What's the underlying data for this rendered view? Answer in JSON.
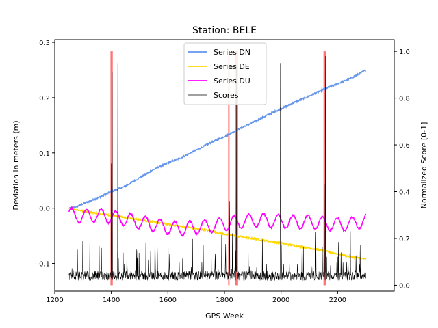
{
  "chart_data": {
    "type": "line",
    "title": "Station: BELE",
    "xlabel": "GPS Week",
    "ylabel": "Deviation in meters (m)",
    "y2label": "Normalized Score [0-1]",
    "xlim": [
      1200,
      2400
    ],
    "ylim": [
      -0.15,
      0.305
    ],
    "y2lim": [
      -0.025,
      1.05
    ],
    "xticks": [
      1200,
      1400,
      1600,
      1800,
      2000,
      2200
    ],
    "yticks": [
      -0.1,
      0.0,
      0.1,
      0.2,
      0.3
    ],
    "y2ticks": [
      0.0,
      0.2,
      0.4,
      0.6,
      0.8,
      1.0
    ],
    "x_range": [
      1250,
      2300
    ],
    "legend_position": "top-center",
    "series": [
      {
        "name": "Series DN",
        "axis": "left",
        "color": "#6495ED",
        "x": [
          1250,
          1275,
          1300,
          1350,
          1400,
          1450,
          1500,
          1550,
          1600,
          1650,
          1700,
          1750,
          1800,
          1850,
          1900,
          1950,
          2000,
          2050,
          2100,
          2150,
          2200,
          2250,
          2300
        ],
        "values": [
          0.0,
          0.002,
          0.008,
          0.018,
          0.03,
          0.04,
          0.055,
          0.07,
          0.082,
          0.092,
          0.105,
          0.118,
          0.13,
          0.143,
          0.155,
          0.168,
          0.18,
          0.192,
          0.203,
          0.215,
          0.225,
          0.236,
          0.25
        ]
      },
      {
        "name": "Series DE",
        "axis": "left",
        "color": "#FFD700",
        "x": [
          1250,
          1300,
          1350,
          1400,
          1450,
          1500,
          1550,
          1600,
          1650,
          1700,
          1750,
          1800,
          1850,
          1900,
          1950,
          2000,
          2050,
          2100,
          2150,
          2200,
          2250,
          2300
        ],
        "values": [
          0.0,
          -0.005,
          -0.009,
          -0.013,
          -0.017,
          -0.021,
          -0.025,
          -0.029,
          -0.033,
          -0.037,
          -0.041,
          -0.047,
          -0.051,
          -0.055,
          -0.059,
          -0.063,
          -0.068,
          -0.072,
          -0.077,
          -0.083,
          -0.088,
          -0.092
        ]
      },
      {
        "name": "Series DU",
        "axis": "left",
        "color": "#FF00FF",
        "seasonal": true,
        "x": [
          1250,
          1300,
          1350,
          1400,
          1450,
          1500,
          1550,
          1600,
          1650,
          1700,
          1750,
          1800,
          1850,
          1900,
          1950,
          2000,
          2050,
          2100,
          2150,
          2200,
          2250,
          2300
        ],
        "values": [
          -0.012,
          -0.015,
          -0.013,
          -0.015,
          -0.02,
          -0.025,
          -0.03,
          -0.035,
          -0.037,
          -0.035,
          -0.032,
          -0.028,
          -0.025,
          -0.022,
          -0.022,
          -0.024,
          -0.025,
          -0.025,
          -0.027,
          -0.03,
          -0.028,
          -0.022
        ],
        "amplitude": 0.012
      },
      {
        "name": "Scores",
        "axis": "right",
        "color": "#000000",
        "baseline": [
          0.02,
          0.06
        ],
        "spikes": [
          {
            "x": 1400,
            "y": 0.52
          },
          {
            "x": 1403,
            "y": 0.91
          },
          {
            "x": 1423,
            "y": 0.95
          },
          {
            "x": 1818,
            "y": 0.36
          },
          {
            "x": 1838,
            "y": 0.42
          },
          {
            "x": 1843,
            "y": 0.94
          },
          {
            "x": 1998,
            "y": 0.95
          },
          {
            "x": 2153,
            "y": 0.43
          },
          {
            "x": 2157,
            "y": 0.98
          }
        ]
      }
    ],
    "highlights": [
      {
        "x": [
          1397,
          1405
        ],
        "color": "#FF0000"
      },
      {
        "x": [
          1813,
          1817
        ],
        "color": "#FF0000"
      },
      {
        "x": [
          1837,
          1848
        ],
        "color": "#FF0000"
      },
      {
        "x": [
          2150,
          2159
        ],
        "color": "#FF0000"
      }
    ]
  }
}
